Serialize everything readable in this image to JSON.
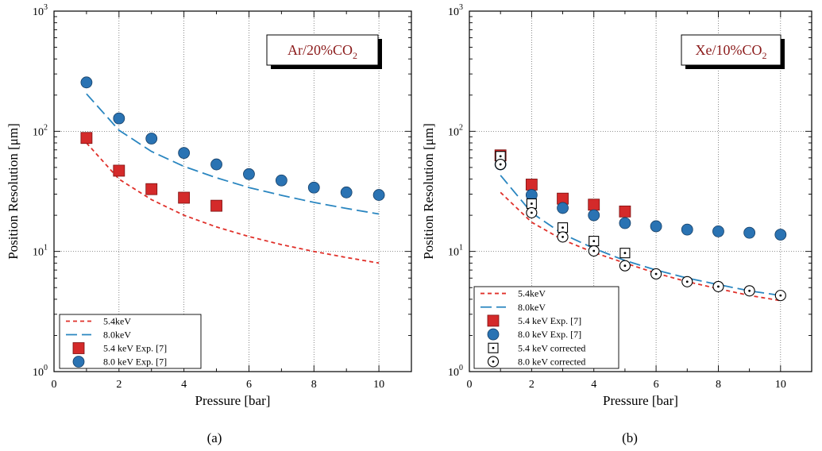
{
  "captions": [
    "(a)",
    "(b)"
  ],
  "colors": {
    "red_fill": "#d42a2a",
    "blue_fill": "#2a73b3",
    "red_dash": "#e0302a",
    "blue_dash": "#2a86c0",
    "gas_label_text": "#8b1a1a"
  },
  "chart_data": [
    {
      "type": "scatter",
      "panel": "a",
      "gas_label": {
        "base": "Ar/20%CO",
        "sub": "2"
      },
      "xlabel": "Pressure [bar]",
      "ylabel": "Position Resolution [μm]",
      "xlim": [
        0,
        11
      ],
      "ylim": [
        1,
        1000
      ],
      "yscale": "log",
      "grid": true,
      "legend_placement": "bottom-left",
      "x_ticks": [
        0,
        2,
        4,
        6,
        8,
        10
      ],
      "y_ticks": [
        {
          "value": 1,
          "base": "10",
          "exp": "0"
        },
        {
          "value": 10,
          "base": "10",
          "exp": "1"
        },
        {
          "value": 100,
          "base": "10",
          "exp": "2"
        },
        {
          "value": 1000,
          "base": "10",
          "exp": "3"
        }
      ],
      "series": [
        {
          "name": "5.4keV",
          "kind": "dashed-line",
          "color": "#e0302a",
          "x": [
            1,
            2,
            3,
            4,
            5,
            6,
            7,
            8,
            9,
            10
          ],
          "y": [
            80,
            40,
            27,
            20,
            16,
            13.3,
            11.4,
            10,
            8.9,
            8
          ]
        },
        {
          "name": "8.0keV",
          "kind": "long-dashed-line",
          "color": "#2a86c0",
          "x": [
            1,
            2,
            3,
            4,
            5,
            6,
            7,
            8,
            9,
            10
          ],
          "y": [
            205,
            102,
            68,
            51,
            41,
            34,
            29.3,
            25.6,
            22.8,
            20.5
          ]
        },
        {
          "name": "5.4 keV Exp. [7]",
          "kind": "square-filled",
          "color": "#d42a2a",
          "x": [
            1,
            2,
            3,
            4,
            5
          ],
          "y": [
            88,
            47,
            33,
            28,
            24
          ]
        },
        {
          "name": "8.0 keV Exp. [7]",
          "kind": "circle-filled",
          "color": "#2a73b3",
          "x": [
            1,
            2,
            3,
            4,
            5,
            6,
            7,
            8,
            9,
            10
          ],
          "y": [
            255,
            128,
            87,
            66,
            53,
            44,
            39,
            34,
            31,
            29.5
          ]
        }
      ]
    },
    {
      "type": "scatter",
      "panel": "b",
      "gas_label": {
        "base": "Xe/10%CO",
        "sub": "2"
      },
      "xlabel": "Pressure [bar]",
      "ylabel": "Position Resolution [μm]",
      "xlim": [
        0,
        11
      ],
      "ylim": [
        1,
        1000
      ],
      "yscale": "log",
      "grid": true,
      "legend_placement": "bottom-left",
      "x_ticks": [
        0,
        2,
        4,
        6,
        8,
        10
      ],
      "y_ticks": [
        {
          "value": 1,
          "base": "10",
          "exp": "0"
        },
        {
          "value": 10,
          "base": "10",
          "exp": "1"
        },
        {
          "value": 100,
          "base": "10",
          "exp": "2"
        },
        {
          "value": 1000,
          "base": "10",
          "exp": "3"
        }
      ],
      "series": [
        {
          "name": "5.4keV",
          "kind": "dashed-line",
          "color": "#e0302a",
          "x": [
            1,
            2,
            3,
            4,
            5,
            6,
            7,
            8,
            9,
            10
          ],
          "y": [
            31,
            17.5,
            12.5,
            9.8,
            8,
            6.6,
            5.6,
            4.9,
            4.3,
            3.9
          ]
        },
        {
          "name": "8.0keV",
          "kind": "long-dashed-line",
          "color": "#2a86c0",
          "x": [
            1,
            2,
            3,
            4,
            5,
            6,
            7,
            8,
            9,
            10
          ],
          "y": [
            43,
            21,
            14,
            10.6,
            8.4,
            7.0,
            6.0,
            5.3,
            4.7,
            4.3
          ]
        },
        {
          "name": "5.4 keV Exp. [7]",
          "kind": "square-filled",
          "color": "#d42a2a",
          "x": [
            1,
            2,
            3,
            4,
            5
          ],
          "y": [
            63,
            36,
            27.5,
            24.5,
            21.5
          ]
        },
        {
          "name": "8.0 keV Exp. [7]",
          "kind": "circle-filled",
          "color": "#2a73b3",
          "x": [
            1,
            2,
            3,
            4,
            5,
            6,
            7,
            8,
            9,
            10
          ],
          "y": [
            53,
            29.5,
            23,
            20,
            17.2,
            16.2,
            15.2,
            14.7,
            14.3,
            13.8
          ]
        },
        {
          "name": "5.4 keV corrected",
          "kind": "square-open-dot",
          "color": "#000000",
          "x": [
            1,
            2,
            3,
            4,
            5
          ],
          "y": [
            62,
            25,
            15.8,
            12.2,
            9.7
          ]
        },
        {
          "name": "8.0 keV corrected",
          "kind": "circle-open-dot",
          "color": "#000000",
          "x": [
            1,
            2,
            3,
            4,
            5,
            6,
            7,
            8,
            9,
            10
          ],
          "y": [
            53,
            21,
            13.2,
            10.1,
            7.6,
            6.5,
            5.6,
            5.1,
            4.7,
            4.3
          ]
        }
      ]
    }
  ]
}
